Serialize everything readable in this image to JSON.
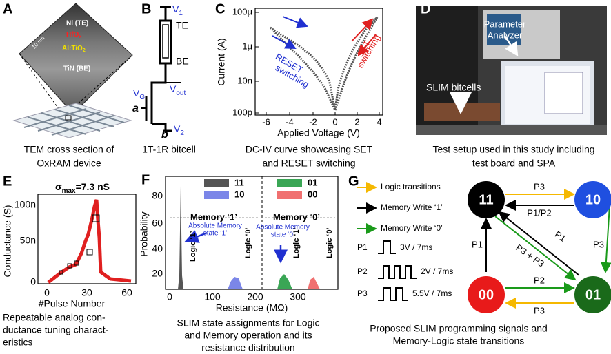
{
  "panels": {
    "a": {
      "label": "A",
      "layers": {
        "te": "Ni (TE)",
        "hfo": {
          "base": "HfO",
          "sub": "x"
        },
        "alti": {
          "base": "Al:TiO",
          "sub": "2"
        },
        "be": "TiN (BE)"
      },
      "scale": "10 nm",
      "caption": [
        "TEM cross section of",
        "OxRAM device"
      ]
    },
    "b": {
      "label": "B",
      "v1": {
        "base": "V",
        "sub": "1"
      },
      "te": "TE",
      "be": "BE",
      "vg": {
        "base": "V",
        "sub": "G"
      },
      "vout": {
        "base": "V",
        "sub": "out"
      },
      "a": "a",
      "b": "b",
      "v2": {
        "base": "V",
        "sub": "2"
      },
      "caption": [
        "1T-1R bitcell"
      ]
    },
    "c": {
      "label": "C",
      "ylabel": "Current (A)",
      "xlabel": "Applied Voltage (V)",
      "yticks": [
        "100μ",
        "1μ",
        "10n",
        "100p"
      ],
      "xticks": [
        "-6",
        "-4",
        "-2",
        "0",
        "2",
        "4"
      ],
      "reset": [
        "RESET",
        "switching"
      ],
      "set": [
        "SET",
        "switching"
      ],
      "caption": [
        "DC-IV curve showcasing SET",
        "and RESET switching"
      ]
    },
    "d": {
      "label": "D",
      "analyzer": [
        "Parameter",
        "Analyzer"
      ],
      "bitcells": "SLIM bitcells",
      "caption": [
        "Test setup used in this study including",
        "test board and SPA"
      ]
    },
    "e": {
      "label": "E",
      "title": {
        "base": "σ",
        "sub": "max",
        "rest": "=7.3 nS"
      },
      "ylabel": "Conductance (S)",
      "yticks": [
        "0",
        "50n",
        "100n"
      ],
      "xticks": [
        "0",
        "30",
        "60"
      ],
      "xlabel": "#Pulse Number",
      "caption": [
        "Repeatable analog con-",
        "ductance tuning charact-",
        "eristics"
      ]
    },
    "f": {
      "label": "F",
      "legend": [
        {
          "name": "11",
          "color": "#555555"
        },
        {
          "name": "10",
          "color": "#7b86e8"
        },
        {
          "name": "01",
          "color": "#3aa655"
        },
        {
          "name": "00",
          "color": "#f07070"
        }
      ],
      "mem1": "Memory ‘1’",
      "mem0": "Memory ‘0’",
      "abs1": [
        "Absolute Memory",
        "state ‘1’"
      ],
      "abs0": [
        "Absolute Memory",
        "state ‘0’"
      ],
      "logic1": "Logic ‘1’",
      "logic0": "Logic ‘0’",
      "ylabel": "Probability",
      "yticks": [
        "20",
        "40",
        "60",
        "80"
      ],
      "xticks": [
        "0",
        "100",
        "200",
        "300"
      ],
      "xlabel": "Resistance (MΩ)",
      "caption": [
        "SLIM state assignments for Logic",
        "and Memory operation and its",
        "resistance distribution"
      ]
    },
    "g": {
      "label": "G",
      "legend": [
        "Logic transitions",
        "Memory Write ‘1’",
        "Memory Write ‘0’"
      ],
      "pulses": [
        {
          "name": "P1",
          "spec": "3V / 7ms"
        },
        {
          "name": "P2",
          "spec": "2V / 7ms"
        },
        {
          "name": "P3",
          "spec": "5.5V / 7ms"
        }
      ],
      "nodes": [
        "11",
        "10",
        "00",
        "01"
      ],
      "edges": [
        "P3",
        "P1/P2",
        "P1",
        "P3 + P3",
        "P1",
        "P3",
        "P2",
        "P3"
      ],
      "caption": [
        "Proposed SLIM programming signals and",
        "Memory-Logic state transitions"
      ]
    }
  }
}
